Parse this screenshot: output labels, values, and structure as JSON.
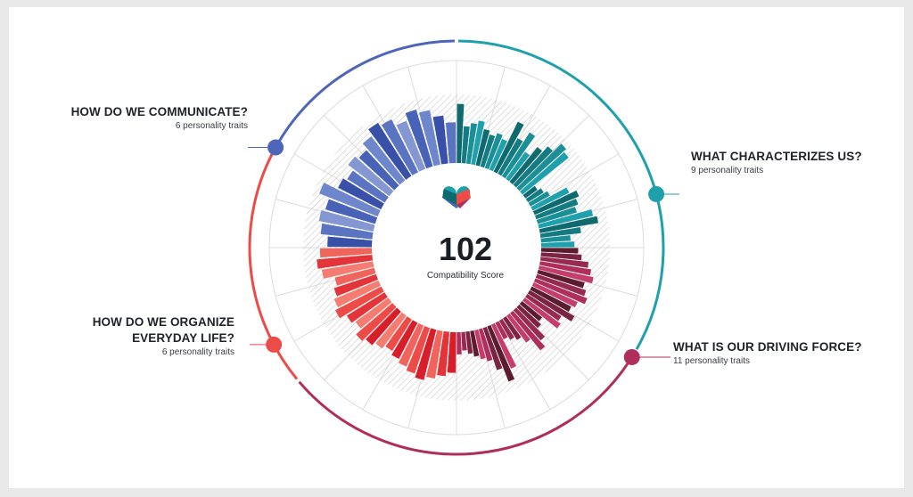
{
  "score": {
    "value": "102",
    "label": "Compatibility Score",
    "logo_icon": "heart-logo-icon"
  },
  "colors": {
    "communicate": "#4e66b9",
    "characterizes": "#1fa0ad",
    "driving": "#b02e5c",
    "organize": "#ec4b48",
    "grid": "#dcdcdc",
    "hatch": "#cfcfcf"
  },
  "categories": [
    {
      "key": "communicate",
      "title": "HOW DO WE COMMUNICATE?",
      "subtitle": "6 personality traits"
    },
    {
      "key": "characterizes",
      "title": "WHAT CHARACTERIZES US?",
      "subtitle": "9 personality traits"
    },
    {
      "key": "driving",
      "title": "WHAT IS OUR DRIVING FORCE?",
      "subtitle": "11 personality traits"
    },
    {
      "key": "organize",
      "title_line1": "HOW DO WE ORGANIZE",
      "title_line2": "EVERYDAY LIFE?",
      "subtitle": "6 personality traits"
    }
  ],
  "chart_data": {
    "type": "bar",
    "layout": "radial",
    "value_range": [
      0,
      1
    ],
    "series": [
      {
        "category": "WHAT CHARACTERIZES US?",
        "colors": [
          "#0e6a6f",
          "#147b82",
          "#1a8f96",
          "#1fa0ad",
          "#2bb0bd"
        ],
        "values": [
          0.8,
          0.5,
          0.55,
          0.6,
          0.5,
          0.45,
          0.5,
          0.45,
          0.75,
          0.55,
          0.7,
          0.45,
          0.6,
          0.7,
          0.85,
          0.8,
          0.2,
          0.25,
          0.3,
          0.55,
          0.65,
          0.6,
          0.55,
          0.75,
          0.8,
          0.55,
          0.4,
          0.45
        ]
      },
      {
        "category": "WHAT IS OUR DRIVING FORCE?",
        "colors": [
          "#5c1c2f",
          "#7a2342",
          "#962a51",
          "#b02e5c",
          "#c43d6c"
        ],
        "values": [
          0.5,
          0.55,
          0.65,
          0.7,
          0.75,
          0.65,
          0.7,
          0.75,
          0.65,
          0.6,
          0.7,
          0.55,
          0.6,
          0.35,
          0.4,
          0.55,
          0.65,
          0.45,
          0.35,
          0.3,
          0.25,
          0.65,
          0.8,
          0.6,
          0.45,
          0.4,
          0.35,
          0.3,
          0.25,
          0.3
        ]
      },
      {
        "category": "HOW DO WE ORGANIZE EVERYDAY LIFE?",
        "colors": [
          "#d61f2a",
          "#e3343a",
          "#ec4b48",
          "#f0645c",
          "#f47c70"
        ],
        "values": [
          0.55,
          0.6,
          0.65,
          0.7,
          0.65,
          0.6,
          0.55,
          0.5,
          0.55,
          0.6,
          0.65,
          0.55,
          0.6,
          0.7,
          0.65,
          0.6,
          0.55,
          0.7,
          0.75,
          0.7
        ]
      },
      {
        "category": "HOW DO WE COMMUNICATE?",
        "colors": [
          "#3850a8",
          "#4862b8",
          "#5a74c2",
          "#6e86cc",
          "#8497d3"
        ],
        "values": [
          0.6,
          0.7,
          0.75,
          0.7,
          0.85,
          0.65,
          0.6,
          0.7,
          0.65,
          0.75,
          0.85,
          0.8,
          0.7,
          0.8,
          0.75,
          0.65,
          0.55
        ]
      }
    ]
  }
}
